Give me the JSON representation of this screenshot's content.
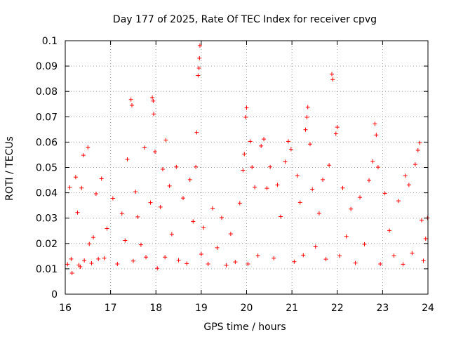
{
  "chart_data": {
    "type": "scatter",
    "title": "Day 177 of 2025, Rate Of TEC Index for receiver cpvg",
    "xlabel": "GPS time / hours",
    "ylabel": "ROTI / TECUs",
    "xlim": [
      16,
      24
    ],
    "ylim": [
      0,
      0.1
    ],
    "xticks": [
      "16",
      "17",
      "18",
      "19",
      "20",
      "21",
      "22",
      "23",
      "24"
    ],
    "yticks": [
      "0",
      "0.01",
      "0.02",
      "0.03",
      "0.04",
      "0.05",
      "0.06",
      "0.07",
      "0.08",
      "0.09",
      "0.1"
    ],
    "grid": true,
    "marker": "plus",
    "color": "#ff0000",
    "series": [
      {
        "name": "ROTI",
        "points": [
          [
            16.05,
            0.0118
          ],
          [
            16.1,
            0.0421
          ],
          [
            16.13,
            0.0139
          ],
          [
            16.15,
            0.0083
          ],
          [
            16.23,
            0.0462
          ],
          [
            16.27,
            0.0322
          ],
          [
            16.3,
            0.0115
          ],
          [
            16.33,
            0.0108
          ],
          [
            16.36,
            0.0419
          ],
          [
            16.4,
            0.0548
          ],
          [
            16.42,
            0.0133
          ],
          [
            16.5,
            0.0579
          ],
          [
            16.53,
            0.0198
          ],
          [
            16.58,
            0.0122
          ],
          [
            16.62,
            0.0224
          ],
          [
            16.68,
            0.0396
          ],
          [
            16.73,
            0.0139
          ],
          [
            16.8,
            0.0456
          ],
          [
            16.86,
            0.0142
          ],
          [
            16.92,
            0.0259
          ],
          [
            17.05,
            0.0378
          ],
          [
            17.15,
            0.0119
          ],
          [
            17.25,
            0.0318
          ],
          [
            17.32,
            0.0212
          ],
          [
            17.37,
            0.0532
          ],
          [
            17.45,
            0.0768
          ],
          [
            17.47,
            0.0745
          ],
          [
            17.5,
            0.0131
          ],
          [
            17.55,
            0.0404
          ],
          [
            17.6,
            0.0305
          ],
          [
            17.67,
            0.0195
          ],
          [
            17.75,
            0.0578
          ],
          [
            17.78,
            0.0146
          ],
          [
            17.88,
            0.0361
          ],
          [
            17.92,
            0.0776
          ],
          [
            17.94,
            0.0762
          ],
          [
            17.95,
            0.0711
          ],
          [
            17.98,
            0.0562
          ],
          [
            18.03,
            0.0102
          ],
          [
            18.1,
            0.0344
          ],
          [
            18.15,
            0.0493
          ],
          [
            18.2,
            0.0146
          ],
          [
            18.22,
            0.0608
          ],
          [
            18.3,
            0.0427
          ],
          [
            18.35,
            0.0237
          ],
          [
            18.45,
            0.0502
          ],
          [
            18.5,
            0.0134
          ],
          [
            18.6,
            0.0379
          ],
          [
            18.68,
            0.0121
          ],
          [
            18.75,
            0.0452
          ],
          [
            18.82,
            0.0287
          ],
          [
            18.88,
            0.0502
          ],
          [
            18.9,
            0.0638
          ],
          [
            18.93,
            0.0863
          ],
          [
            18.95,
            0.0892
          ],
          [
            18.96,
            0.0931
          ],
          [
            18.97,
            0.0981
          ],
          [
            19.0,
            0.0158
          ],
          [
            19.05,
            0.0262
          ],
          [
            19.15,
            0.0119
          ],
          [
            19.25,
            0.0339
          ],
          [
            19.35,
            0.0183
          ],
          [
            19.45,
            0.0302
          ],
          [
            19.55,
            0.0114
          ],
          [
            19.65,
            0.0238
          ],
          [
            19.75,
            0.0127
          ],
          [
            19.85,
            0.0359
          ],
          [
            19.92,
            0.0489
          ],
          [
            19.95,
            0.0553
          ],
          [
            19.98,
            0.0698
          ],
          [
            20.0,
            0.0735
          ],
          [
            20.03,
            0.0119
          ],
          [
            20.08,
            0.0603
          ],
          [
            20.12,
            0.0501
          ],
          [
            20.18,
            0.0422
          ],
          [
            20.25,
            0.0152
          ],
          [
            20.32,
            0.0585
          ],
          [
            20.38,
            0.0612
          ],
          [
            20.45,
            0.0418
          ],
          [
            20.52,
            0.0502
          ],
          [
            20.6,
            0.0142
          ],
          [
            20.68,
            0.0431
          ],
          [
            20.75,
            0.0306
          ],
          [
            20.85,
            0.0522
          ],
          [
            20.92,
            0.0603
          ],
          [
            20.98,
            0.0572
          ],
          [
            21.05,
            0.0128
          ],
          [
            21.12,
            0.0467
          ],
          [
            21.18,
            0.0362
          ],
          [
            21.25,
            0.0154
          ],
          [
            21.3,
            0.0649
          ],
          [
            21.33,
            0.0698
          ],
          [
            21.35,
            0.0738
          ],
          [
            21.4,
            0.0592
          ],
          [
            21.45,
            0.0414
          ],
          [
            21.52,
            0.0187
          ],
          [
            21.6,
            0.0319
          ],
          [
            21.68,
            0.0452
          ],
          [
            21.75,
            0.0138
          ],
          [
            21.82,
            0.0509
          ],
          [
            21.88,
            0.0868
          ],
          [
            21.9,
            0.0847
          ],
          [
            21.97,
            0.0633
          ],
          [
            22.0,
            0.0659
          ],
          [
            22.05,
            0.0151
          ],
          [
            22.12,
            0.0419
          ],
          [
            22.2,
            0.0228
          ],
          [
            22.3,
            0.0336
          ],
          [
            22.4,
            0.0123
          ],
          [
            22.5,
            0.0382
          ],
          [
            22.6,
            0.0197
          ],
          [
            22.7,
            0.0449
          ],
          [
            22.78,
            0.0524
          ],
          [
            22.83,
            0.0672
          ],
          [
            22.86,
            0.0628
          ],
          [
            22.9,
            0.0501
          ],
          [
            22.95,
            0.0119
          ],
          [
            23.05,
            0.0398
          ],
          [
            23.15,
            0.0251
          ],
          [
            23.25,
            0.0152
          ],
          [
            23.35,
            0.0368
          ],
          [
            23.45,
            0.0118
          ],
          [
            23.5,
            0.0467
          ],
          [
            23.58,
            0.0431
          ],
          [
            23.65,
            0.0162
          ],
          [
            23.72,
            0.0512
          ],
          [
            23.78,
            0.0568
          ],
          [
            23.82,
            0.0597
          ],
          [
            23.86,
            0.0292
          ],
          [
            23.9,
            0.0132
          ],
          [
            23.95,
            0.0219
          ],
          [
            23.99,
            0.0301
          ]
        ]
      }
    ]
  }
}
